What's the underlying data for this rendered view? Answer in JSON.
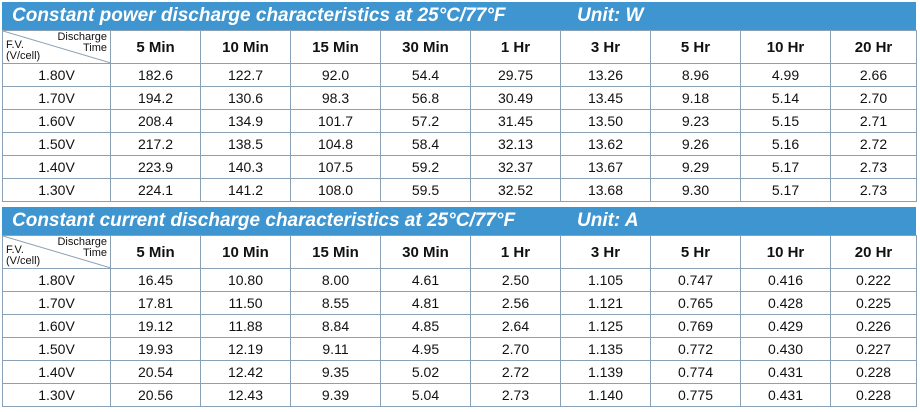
{
  "header": {
    "discharge": "Discharge",
    "time": "Time",
    "fv": "F.V.",
    "vcell": "(V/cell)"
  },
  "columns": [
    "5 Min",
    "10 Min",
    "15 Min",
    "30 Min",
    "1 Hr",
    "3 Hr",
    "5 Hr",
    "10 Hr",
    "20 Hr"
  ],
  "tables": [
    {
      "title": "Constant power discharge characteristics at 25°C/77°F",
      "unit": "Unit: W",
      "rows": [
        {
          "voltage": "1.80V",
          "values": [
            "182.6",
            "122.7",
            "92.0",
            "54.4",
            "29.75",
            "13.26",
            "8.96",
            "4.99",
            "2.66"
          ]
        },
        {
          "voltage": "1.70V",
          "values": [
            "194.2",
            "130.6",
            "98.3",
            "56.8",
            "30.49",
            "13.45",
            "9.18",
            "5.14",
            "2.70"
          ]
        },
        {
          "voltage": "1.60V",
          "values": [
            "208.4",
            "134.9",
            "101.7",
            "57.2",
            "31.45",
            "13.50",
            "9.23",
            "5.15",
            "2.71"
          ]
        },
        {
          "voltage": "1.50V",
          "values": [
            "217.2",
            "138.5",
            "104.8",
            "58.4",
            "32.13",
            "13.62",
            "9.26",
            "5.16",
            "2.72"
          ]
        },
        {
          "voltage": "1.40V",
          "values": [
            "223.9",
            "140.3",
            "107.5",
            "59.2",
            "32.37",
            "13.67",
            "9.29",
            "5.17",
            "2.73"
          ]
        },
        {
          "voltage": "1.30V",
          "values": [
            "224.1",
            "141.2",
            "108.0",
            "59.5",
            "32.52",
            "13.68",
            "9.30",
            "5.17",
            "2.73"
          ]
        }
      ]
    },
    {
      "title": "Constant current discharge characteristics at 25°C/77°F",
      "unit": "Unit: A",
      "rows": [
        {
          "voltage": "1.80V",
          "values": [
            "16.45",
            "10.80",
            "8.00",
            "4.61",
            "2.50",
            "1.105",
            "0.747",
            "0.416",
            "0.222"
          ]
        },
        {
          "voltage": "1.70V",
          "values": [
            "17.81",
            "11.50",
            "8.55",
            "4.81",
            "2.56",
            "1.121",
            "0.765",
            "0.428",
            "0.225"
          ]
        },
        {
          "voltage": "1.60V",
          "values": [
            "19.12",
            "11.88",
            "8.84",
            "4.85",
            "2.64",
            "1.125",
            "0.769",
            "0.429",
            "0.226"
          ]
        },
        {
          "voltage": "1.50V",
          "values": [
            "19.93",
            "12.19",
            "9.11",
            "4.95",
            "2.70",
            "1.135",
            "0.772",
            "0.430",
            "0.227"
          ]
        },
        {
          "voltage": "1.40V",
          "values": [
            "20.54",
            "12.42",
            "9.35",
            "5.02",
            "2.72",
            "1.139",
            "0.774",
            "0.431",
            "0.228"
          ]
        },
        {
          "voltage": "1.30V",
          "values": [
            "20.56",
            "12.43",
            "9.39",
            "5.04",
            "2.73",
            "1.140",
            "0.775",
            "0.431",
            "0.228"
          ]
        }
      ]
    }
  ]
}
